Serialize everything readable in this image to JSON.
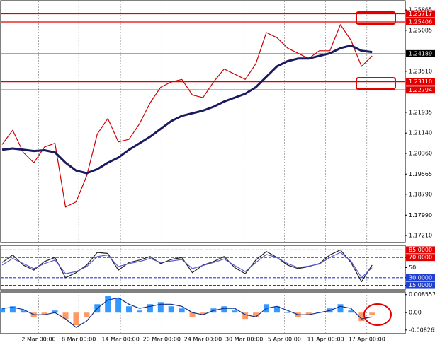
{
  "chart_data": [
    {
      "type": "line",
      "x": [
        0,
        1,
        2,
        3,
        4,
        5,
        6,
        7,
        8,
        9,
        10,
        11,
        12,
        13,
        14,
        15,
        16,
        17,
        18,
        19,
        20,
        21,
        22,
        23,
        24,
        25,
        26,
        27,
        28,
        29,
        30,
        31,
        32,
        33,
        34,
        35
      ],
      "xlim": [
        0,
        38
      ],
      "ylim": [
        1.1694,
        1.2622
      ],
      "yticks": [
        1.25865,
        1.25085,
        {
          "value": 1.2351,
          "label": "1.23510"
        },
        1.21935,
        {
          "value": 1.2114,
          "label": "1.21140"
        },
        {
          "value": 1.2036,
          "label": "1.20360"
        },
        1.19565,
        {
          "value": 1.1879,
          "label": "1.18790"
        },
        {
          "value": 1.1799,
          "label": "1.17990"
        },
        {
          "value": 1.1721,
          "label": "1.17210"
        }
      ],
      "levels": [
        {
          "value": 1.25717,
          "color": "#e00000"
        },
        {
          "value": 1.25406,
          "color": "#e00000"
        },
        {
          "value": 1.24189,
          "color": "#000000",
          "line_color": "#6f86d6"
        },
        {
          "value": 1.2311,
          "label": "1.23110",
          "color": "#e00000"
        },
        {
          "value": 1.22794,
          "color": "#e00000"
        }
      ],
      "series": [
        {
          "color": "#cc0000",
          "values": [
            1.207,
            1.2125,
            1.204,
            1.2,
            1.206,
            1.2075,
            1.183,
            1.185,
            1.195,
            1.211,
            1.217,
            1.208,
            1.209,
            1.215,
            1.223,
            1.229,
            1.231,
            1.232,
            1.226,
            1.225,
            1.231,
            1.236,
            1.234,
            1.232,
            1.238,
            1.25,
            1.248,
            1.244,
            1.242,
            1.24,
            1.243,
            1.243,
            1.253,
            1.247,
            1.237,
            1.241
          ]
        },
        {
          "color": "#1a1a5e",
          "values": [
            1.205,
            1.2055,
            1.205,
            1.2045,
            1.2048,
            1.204,
            1.2,
            1.197,
            1.196,
            1.1975,
            1.2,
            1.202,
            1.205,
            1.2075,
            1.21,
            1.213,
            1.216,
            1.218,
            1.219,
            1.22,
            1.2215,
            1.2235,
            1.225,
            1.2265,
            1.229,
            1.233,
            1.237,
            1.239,
            1.24,
            1.24,
            1.241,
            1.242,
            1.244,
            1.245,
            1.243,
            1.2425
          ]
        }
      ]
    },
    {
      "type": "line",
      "x": [
        0,
        1,
        2,
        3,
        4,
        5,
        6,
        7,
        8,
        9,
        10,
        11,
        12,
        13,
        14,
        15,
        16,
        17,
        18,
        19,
        20,
        21,
        22,
        23,
        24,
        25,
        26,
        27,
        28,
        29,
        30,
        31,
        32,
        33,
        34,
        35
      ],
      "xlim": [
        0,
        38
      ],
      "ylim": [
        6,
        94
      ],
      "yticks": [
        {
          "value": 85,
          "label": "85.0000"
        },
        {
          "value": 70,
          "label": "70.0000"
        },
        50,
        {
          "value": 30,
          "label": "30.0000"
        },
        {
          "value": 15,
          "label": "15.0000"
        }
      ],
      "levels": [
        {
          "value": 85,
          "color": "#e00000"
        },
        {
          "value": 70,
          "color": "#e00000"
        },
        {
          "value": 30,
          "color": "#2040d0"
        },
        {
          "value": 15,
          "color": "#2040d0"
        }
      ],
      "series": [
        {
          "color": "#222222",
          "values": [
            60,
            75,
            55,
            45,
            62,
            70,
            30,
            40,
            55,
            80,
            78,
            45,
            60,
            65,
            72,
            58,
            66,
            70,
            40,
            55,
            62,
            72,
            50,
            38,
            65,
            82,
            70,
            55,
            48,
            52,
            58,
            75,
            85,
            60,
            22,
            55
          ]
        },
        {
          "color": "#5a5ad0",
          "values": [
            55,
            68,
            58,
            48,
            58,
            65,
            38,
            42,
            52,
            72,
            75,
            52,
            58,
            62,
            68,
            60,
            63,
            66,
            48,
            54,
            60,
            67,
            54,
            42,
            60,
            76,
            70,
            58,
            50,
            53,
            57,
            70,
            80,
            63,
            30,
            50
          ]
        }
      ]
    },
    {
      "type": "macd",
      "x": [
        0,
        1,
        2,
        3,
        4,
        5,
        6,
        7,
        8,
        9,
        10,
        11,
        12,
        13,
        14,
        15,
        16,
        17,
        18,
        19,
        20,
        21,
        22,
        23,
        24,
        25,
        26,
        27,
        28,
        29,
        30,
        31,
        32,
        33,
        34,
        35
      ],
      "xlim": [
        0,
        38
      ],
      "ylim": [
        -0.01,
        0.0098
      ],
      "yticks": [
        0.008557,
        {
          "value": 0,
          "label": "0.00"
        },
        -0.008265
      ],
      "xticks": [
        {
          "value": 3.45,
          "label": "2 Mar 00:00"
        },
        {
          "value": 7.25,
          "label": "8 Mar 00:00"
        },
        {
          "value": 11.2,
          "label": "14 Mar 00:00"
        },
        {
          "value": 15.1,
          "label": "20 Mar 00:00"
        },
        {
          "value": 19,
          "label": "24 Mar 00:00"
        },
        {
          "value": 22.9,
          "label": "30 Mar 00:00"
        },
        {
          "value": 26.7,
          "label": "5 Apr 00:00"
        },
        {
          "value": 30.6,
          "label": "11 Apr 00:00"
        },
        {
          "value": 34.5,
          "label": "17 Apr 00:00"
        }
      ],
      "bars": {
        "positive_color": "#3399ff",
        "negative_color": "#ff9966",
        "values": [
          0.002,
          0.003,
          0.001,
          -0.002,
          -0.001,
          0.001,
          -0.003,
          -0.006,
          -0.002,
          0.004,
          0.008,
          0.007,
          0.003,
          0.001,
          0.004,
          0.005,
          0.003,
          0.002,
          -0.002,
          -0.001,
          0.002,
          0.003,
          0.001,
          -0.003,
          -0.002,
          0.004,
          0.003,
          0,
          -0.002,
          -0.001,
          0,
          0.002,
          0.004,
          0.001,
          -0.004,
          -0.001
        ]
      },
      "series": [
        {
          "color": "#10308a",
          "values": [
            0.002,
            0.0025,
            0.0015,
            -0.001,
            -0.001,
            0,
            -0.003,
            -0.007,
            -0.004,
            0.002,
            0.006,
            0.007,
            0.004,
            0.002,
            0.003,
            0.004,
            0.004,
            0.003,
            0,
            -0.001,
            0.001,
            0.002,
            0.002,
            -0.001,
            -0.002,
            0.002,
            0.003,
            0.001,
            -0.001,
            -0.001,
            0,
            0.001,
            0.003,
            0.002,
            -0.003,
            -0.002
          ]
        }
      ]
    }
  ]
}
